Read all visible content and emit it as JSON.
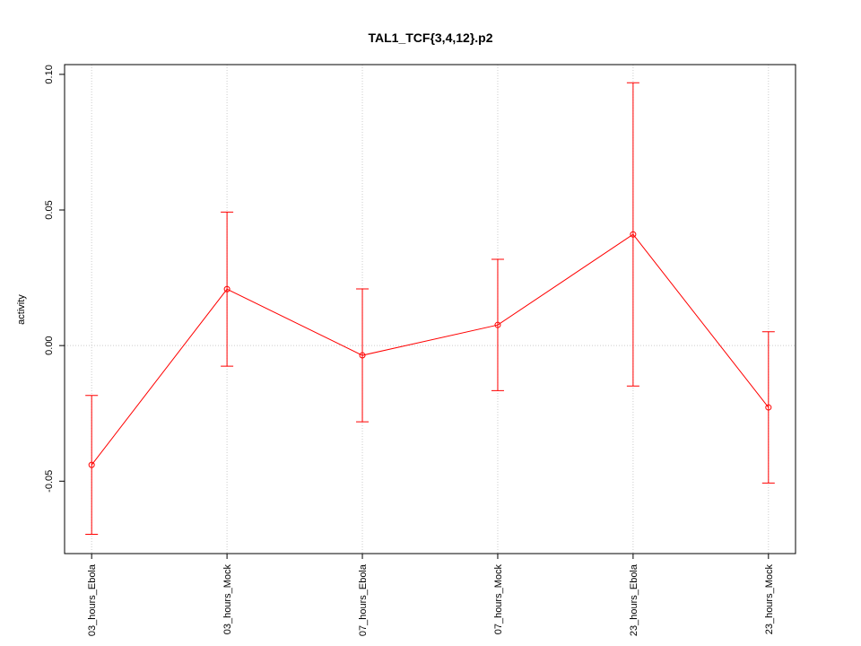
{
  "chart_data": {
    "type": "line",
    "title": "TAL1_TCF{3,4,12}.p2",
    "y_label": "activity",
    "categories": [
      "03_hours_Ebola",
      "03_hours_Mock",
      "07_hours_Ebola",
      "07_hours_Mock",
      "23_hours_Ebola",
      "23_hours_Mock"
    ],
    "series": [
      {
        "color": "#ff0000",
        "values": [
          -0.044,
          0.0208,
          -0.0036,
          0.0076,
          0.041,
          -0.0228
        ],
        "errors": [
          0.0256,
          0.0284,
          0.0245,
          0.0242,
          0.0559,
          0.0279
        ]
      }
    ],
    "ylim": [
      -0.0767,
      0.1036
    ],
    "yticks": [
      {
        "value": -0.05,
        "label": "-0.05"
      },
      {
        "value": 0,
        "label": "0.00"
      },
      {
        "value": 0.05,
        "label": "0.05"
      },
      {
        "value": 0.1,
        "label": "0.10"
      }
    ],
    "grid": true,
    "y_reference": 0
  }
}
